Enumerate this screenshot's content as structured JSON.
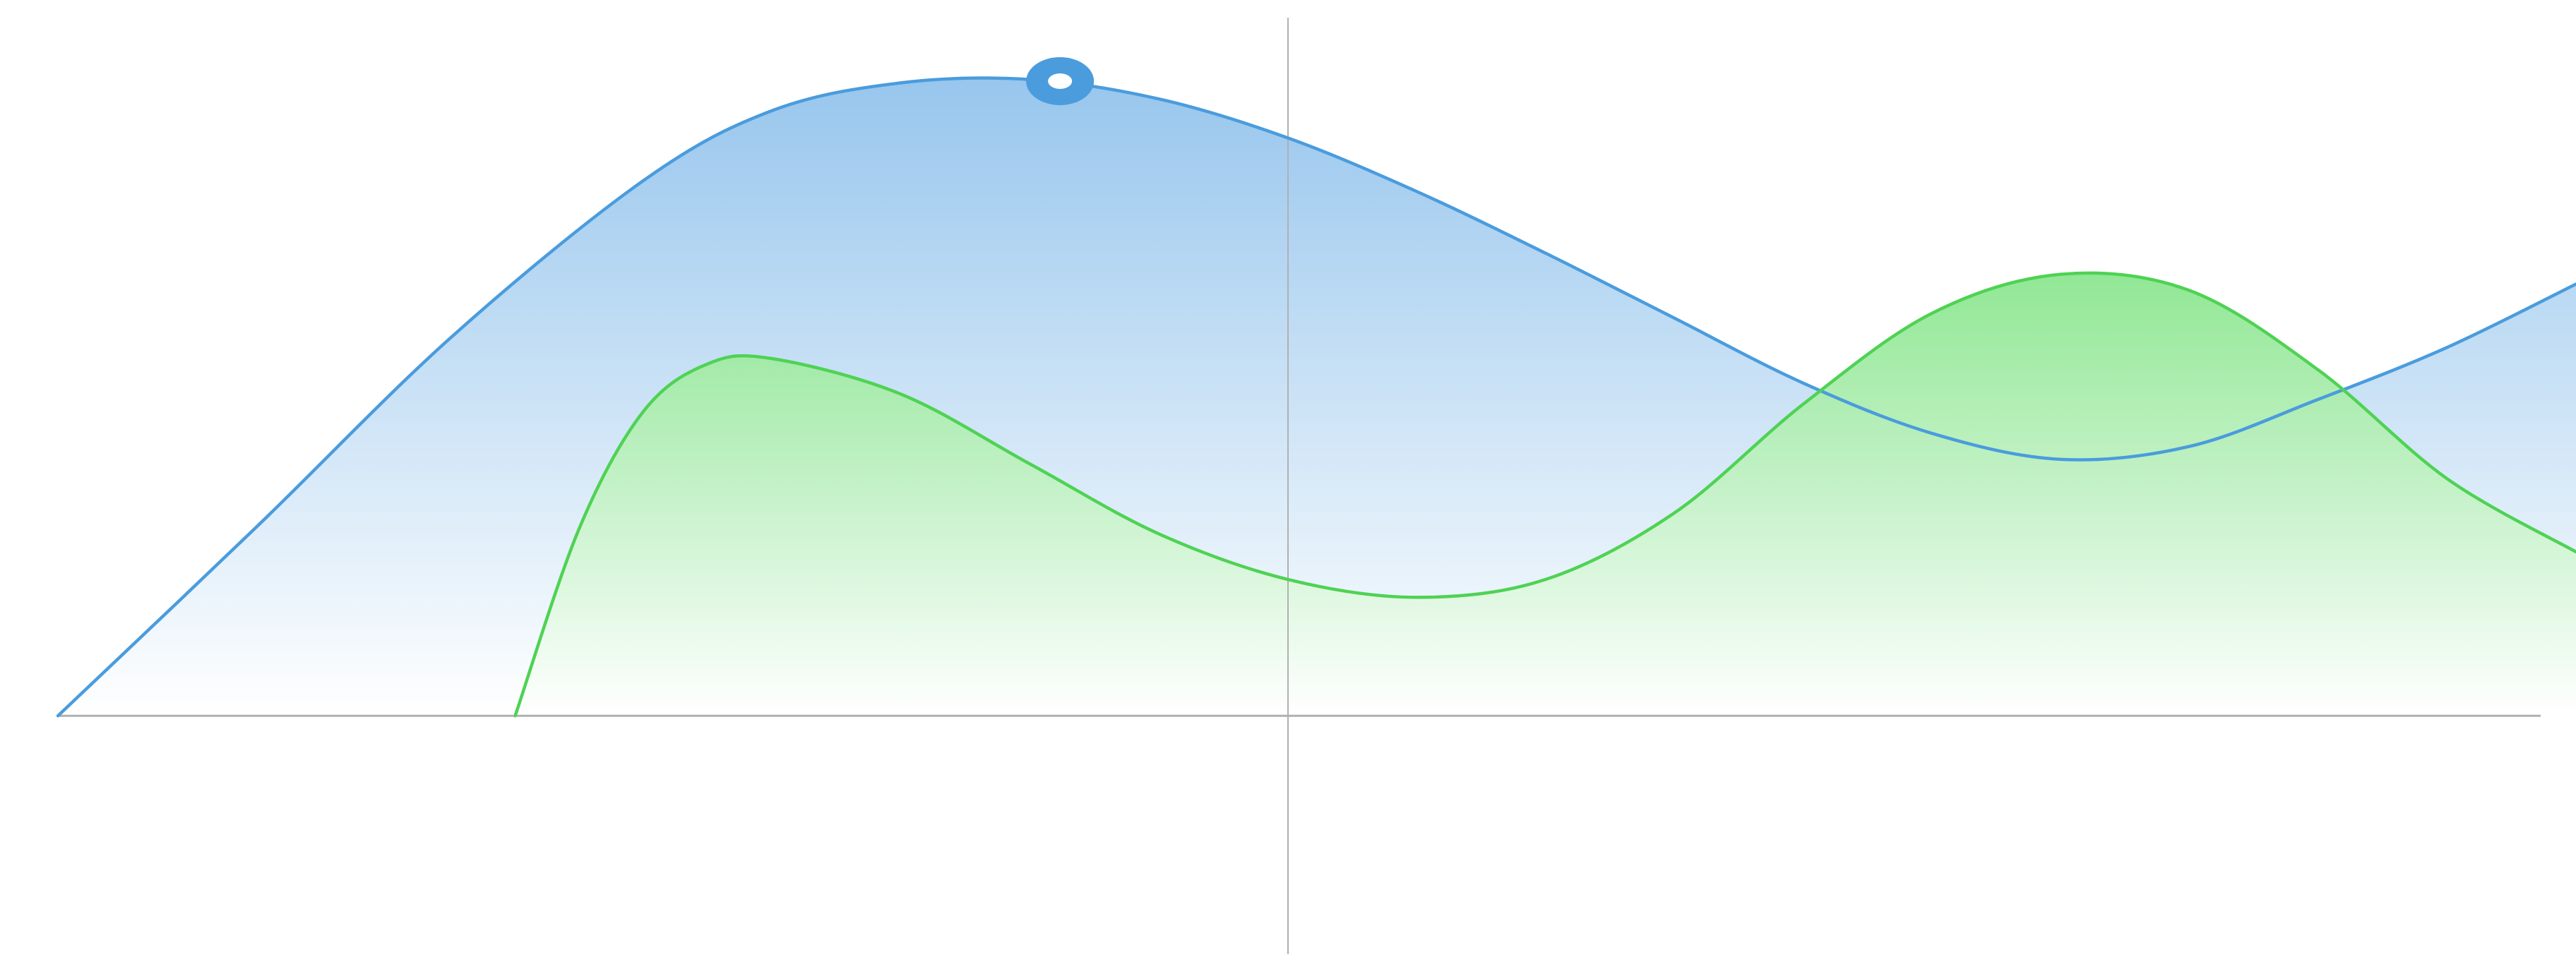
{
  "chart_data": {
    "type": "area",
    "title": "",
    "xlabel": "",
    "ylabel": "",
    "xlim": [
      -10,
      10
    ],
    "ylim": [
      -1.56,
      4.41
    ],
    "grid": false,
    "legend": "none",
    "axes": {
      "x_axis_at_y": 0,
      "y_axis_at_x": 0,
      "color": "#b0b0b0"
    },
    "series": [
      {
        "color": "#4a9cdd",
        "fill_top": "#92c3ec",
        "fill_bottom": "#ffffff",
        "points": [
          [
            -9.55,
            0.0
          ],
          [
            -8.0,
            1.17
          ],
          [
            -6.5,
            2.33
          ],
          [
            -5.0,
            3.3
          ],
          [
            -4.0,
            3.73
          ],
          [
            -3.0,
            3.9
          ],
          [
            -2.0,
            3.92
          ],
          [
            -1.0,
            3.8
          ],
          [
            0.0,
            3.56
          ],
          [
            1.0,
            3.23
          ],
          [
            2.0,
            2.85
          ],
          [
            3.0,
            2.45
          ],
          [
            4.0,
            2.05
          ],
          [
            5.0,
            1.74
          ],
          [
            6.0,
            1.58
          ],
          [
            7.0,
            1.66
          ],
          [
            8.0,
            1.95
          ],
          [
            9.0,
            2.27
          ],
          [
            10.0,
            2.66
          ]
        ],
        "highlight_point": [
          -1.77,
          3.91
        ]
      },
      {
        "color": "#4fd254",
        "fill_top": "#8be68f",
        "fill_bottom": "#ffffff",
        "points": [
          [
            -6.0,
            0.0
          ],
          [
            -5.5,
            1.16
          ],
          [
            -5.0,
            1.88
          ],
          [
            -4.5,
            2.17
          ],
          [
            -4.0,
            2.2
          ],
          [
            -3.0,
            1.98
          ],
          [
            -2.0,
            1.55
          ],
          [
            -1.0,
            1.12
          ],
          [
            0.0,
            0.84
          ],
          [
            1.0,
            0.73
          ],
          [
            2.0,
            0.84
          ],
          [
            3.0,
            1.25
          ],
          [
            4.0,
            1.92
          ],
          [
            5.0,
            2.48
          ],
          [
            6.0,
            2.72
          ],
          [
            7.0,
            2.62
          ],
          [
            8.0,
            2.13
          ],
          [
            9.0,
            1.46
          ],
          [
            10.0,
            1.01
          ]
        ]
      }
    ]
  }
}
